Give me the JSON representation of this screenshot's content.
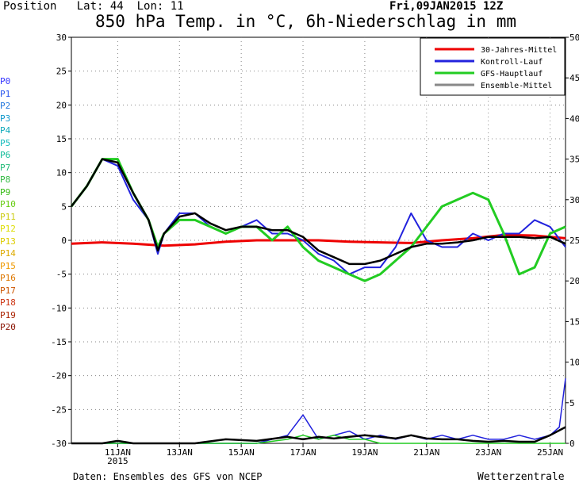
{
  "header": {
    "position_label": "Position",
    "lat_label": "Lat: 44",
    "lon_label": "Lon: 11",
    "run_date": "Fri,09JAN2015 12Z",
    "title": "850 hPa Temp. in °C, 6h-Niederschlag in mm"
  },
  "footer": {
    "source": "Daten: Ensembles des GFS von NCEP",
    "brand": "Wetterzentrale"
  },
  "members": [
    {
      "label": "P0",
      "color": "#3333ff"
    },
    {
      "label": "P1",
      "color": "#2a55ee"
    },
    {
      "label": "P2",
      "color": "#2277dd"
    },
    {
      "label": "P3",
      "color": "#1199cc"
    },
    {
      "label": "P4",
      "color": "#11aabb"
    },
    {
      "label": "P5",
      "color": "#11bbbb"
    },
    {
      "label": "P6",
      "color": "#11bb99"
    },
    {
      "label": "P7",
      "color": "#22bb77"
    },
    {
      "label": "P8",
      "color": "#33bb44"
    },
    {
      "label": "P9",
      "color": "#33bb11"
    },
    {
      "label": "P10",
      "color": "#66cc11"
    },
    {
      "label": "P11",
      "color": "#cccc11"
    },
    {
      "label": "P12",
      "color": "#dddd00"
    },
    {
      "label": "P13",
      "color": "#ddcc00"
    },
    {
      "label": "P14",
      "color": "#ddaa00"
    },
    {
      "label": "P15",
      "color": "#ee9900"
    },
    {
      "label": "P16",
      "color": "#dd7700"
    },
    {
      "label": "P17",
      "color": "#cc5500"
    },
    {
      "label": "P18",
      "color": "#cc3311"
    },
    {
      "label": "P19",
      "color": "#aa2200"
    },
    {
      "label": "P20",
      "color": "#881100"
    }
  ],
  "chart_data": {
    "type": "line",
    "title": "850 hPa Temp. in °C, 6h-Niederschlag in mm",
    "x_range_days": [
      0,
      16
    ],
    "x_ticks": [
      {
        "day": 1.5,
        "label": "11JAN",
        "sublabel": "2015"
      },
      {
        "day": 3.5,
        "label": "13JAN"
      },
      {
        "day": 5.5,
        "label": "15JAN"
      },
      {
        "day": 7.5,
        "label": "17JAN"
      },
      {
        "day": 9.5,
        "label": "19JAN"
      },
      {
        "day": 11.5,
        "label": "21JAN"
      },
      {
        "day": 13.5,
        "label": "23JAN"
      },
      {
        "day": 15.5,
        "label": "25JAN"
      }
    ],
    "y_left": {
      "min": -30,
      "max": 30,
      "step": 5
    },
    "y_right": {
      "min": 0,
      "max": 50,
      "step": 5
    },
    "grid": true,
    "legend_position": "top-right",
    "legend": [
      {
        "name": "30-Jahres-Mittel",
        "color": "#ee0000"
      },
      {
        "name": "Kontroll-Lauf",
        "color": "#2222dd"
      },
      {
        "name": "GFS-Hauptlauf",
        "color": "#22cc22"
      },
      {
        "name": "Ensemble-Mittel",
        "color": "#888888"
      }
    ],
    "series": [
      {
        "key": "climate",
        "color": "#ee0000",
        "width": 3,
        "x": [
          0,
          1,
          2,
          3,
          4,
          5,
          6,
          7,
          8,
          9,
          10,
          11,
          12,
          13,
          14,
          15,
          16
        ],
        "y": [
          -0.5,
          -0.3,
          -0.5,
          -0.8,
          -0.6,
          -0.2,
          0,
          0,
          0,
          -0.2,
          -0.3,
          -0.4,
          0,
          0.3,
          0.8,
          0.7,
          0.3
        ]
      },
      {
        "key": "control",
        "color": "#2222dd",
        "width": 2,
        "x": [
          0,
          0.5,
          1,
          1.5,
          2,
          2.5,
          2.8,
          3,
          3.5,
          4,
          4.5,
          5,
          5.5,
          6,
          6.5,
          7,
          7.5,
          8,
          8.5,
          9,
          9.5,
          10,
          10.5,
          11,
          11.5,
          12,
          12.5,
          13,
          13.5,
          14,
          14.5,
          15,
          15.5,
          16
        ],
        "y": [
          5,
          8,
          12,
          11,
          6,
          3,
          -2,
          1,
          4,
          4,
          2,
          1,
          2,
          3,
          1,
          1,
          0,
          -2,
          -3,
          -5,
          -4,
          -4,
          -1,
          4,
          0,
          -1,
          -1,
          1,
          0,
          1,
          1,
          3,
          2,
          -1
        ]
      },
      {
        "key": "operational",
        "color": "#22cc22",
        "width": 3,
        "x": [
          0,
          0.5,
          1,
          1.5,
          2,
          2.5,
          2.8,
          3,
          3.5,
          4,
          4.5,
          5,
          5.5,
          6,
          6.5,
          7,
          7.5,
          8,
          8.5,
          9,
          9.5,
          10,
          10.5,
          11,
          11.5,
          12,
          12.5,
          13,
          13.5,
          14,
          14.5,
          15,
          15.5,
          16
        ],
        "y": [
          5,
          8,
          12,
          12,
          7,
          3,
          -1,
          1,
          3,
          3,
          2,
          1,
          2,
          2,
          0,
          2,
          -1,
          -3,
          -4,
          -5,
          -6,
          -5,
          -3,
          -1,
          2,
          5,
          6,
          7,
          6,
          1,
          -5,
          -4,
          1,
          2
        ]
      },
      {
        "key": "mean",
        "color": "#000000",
        "width": 2.5,
        "x": [
          0,
          0.5,
          1,
          1.5,
          2,
          2.5,
          2.8,
          3,
          3.5,
          4,
          4.5,
          5,
          5.5,
          6,
          6.5,
          7,
          7.5,
          8,
          8.5,
          9,
          9.5,
          10,
          10.5,
          11,
          11.5,
          12,
          12.5,
          13,
          13.5,
          14,
          14.5,
          15,
          15.5,
          16
        ],
        "y": [
          5,
          8,
          12,
          11.5,
          7,
          3,
          -1.5,
          1,
          3.5,
          4,
          2.5,
          1.5,
          2,
          2,
          1.5,
          1.5,
          0.5,
          -1.5,
          -2.5,
          -3.5,
          -3.5,
          -3,
          -2,
          -1,
          -0.5,
          -0.5,
          -0.3,
          0,
          0.5,
          0.5,
          0.5,
          0.3,
          0.5,
          -0.5
        ]
      },
      {
        "key": "precip_control",
        "color": "#2222dd",
        "width": 1.5,
        "axis": "right",
        "x": [
          0,
          3,
          4,
          5,
          6,
          7,
          7.5,
          8,
          8.5,
          9,
          9.5,
          10,
          10.5,
          11,
          11.5,
          12,
          12.5,
          13,
          13.5,
          14,
          14.5,
          15,
          15.5,
          15.8,
          16
        ],
        "y": [
          0,
          0,
          0,
          0,
          0,
          1,
          3.5,
          0.5,
          1,
          1.5,
          0.5,
          1,
          0.5,
          1,
          0.5,
          1,
          0.5,
          1,
          0.5,
          0.5,
          1,
          0.5,
          1,
          2,
          8
        ]
      },
      {
        "key": "precip_operational",
        "color": "#22cc22",
        "width": 1.5,
        "axis": "right",
        "x": [
          0,
          3,
          5,
          6,
          7,
          7.5,
          8,
          8.5,
          9,
          9.5,
          10,
          11,
          12,
          13,
          14,
          15,
          16
        ],
        "y": [
          0,
          0,
          0,
          0,
          0.5,
          1,
          0.5,
          1,
          0.5,
          0.5,
          0,
          0,
          0,
          0,
          0,
          0,
          0
        ]
      },
      {
        "key": "precip_mean",
        "color": "#000000",
        "width": 2.5,
        "axis": "right",
        "x": [
          0,
          0.5,
          1,
          1.5,
          2,
          3,
          4,
          5,
          6,
          7,
          7.5,
          8,
          8.5,
          9,
          9.5,
          10,
          10.5,
          11,
          11.5,
          12,
          12.5,
          13,
          13.5,
          14,
          14.5,
          15,
          15.5,
          16
        ],
        "y": [
          0,
          0,
          0,
          0.3,
          0,
          0,
          0,
          0.5,
          0.3,
          0.8,
          0.5,
          0.8,
          0.6,
          0.8,
          1,
          0.8,
          0.6,
          1,
          0.6,
          0.5,
          0.5,
          0.3,
          0.2,
          0.3,
          0.2,
          0.2,
          1,
          2
        ]
      }
    ]
  }
}
